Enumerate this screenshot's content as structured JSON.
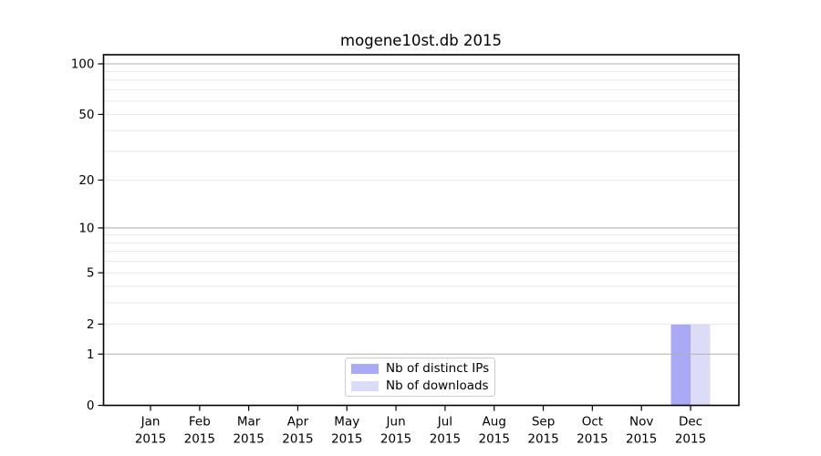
{
  "chart_data": {
    "type": "bar",
    "title": "mogene10st.db 2015",
    "months": [
      "Jan",
      "Feb",
      "Mar",
      "Apr",
      "May",
      "Jun",
      "Jul",
      "Aug",
      "Sep",
      "Oct",
      "Nov",
      "Dec"
    ],
    "year_label": "2015",
    "series": [
      {
        "name": "Nb of distinct IPs",
        "color": "#a9a9f5",
        "values": [
          0,
          0,
          0,
          0,
          0,
          0,
          0,
          0,
          0,
          0,
          0,
          2
        ]
      },
      {
        "name": "Nb of downloads",
        "color": "#dcdcf9",
        "values": [
          0,
          0,
          0,
          0,
          0,
          0,
          0,
          0,
          0,
          0,
          0,
          2
        ]
      }
    ],
    "yscale": "log1p",
    "ylim": [
      0,
      113
    ],
    "yticks_labeled": [
      0,
      1,
      2,
      5,
      10,
      20,
      50,
      100
    ],
    "gridlines_major": [
      1,
      10,
      100
    ],
    "gridlines_minor": [
      2,
      3,
      4,
      5,
      6,
      7,
      8,
      9,
      20,
      30,
      40,
      50,
      60,
      70,
      80,
      90
    ],
    "legend": {
      "position": "lower center"
    },
    "colors": {
      "major_grid": "#b0b0b0",
      "minor_grid": "#e8e8e8",
      "axis": "#000000",
      "text": "#000000",
      "background": "#ffffff"
    }
  }
}
